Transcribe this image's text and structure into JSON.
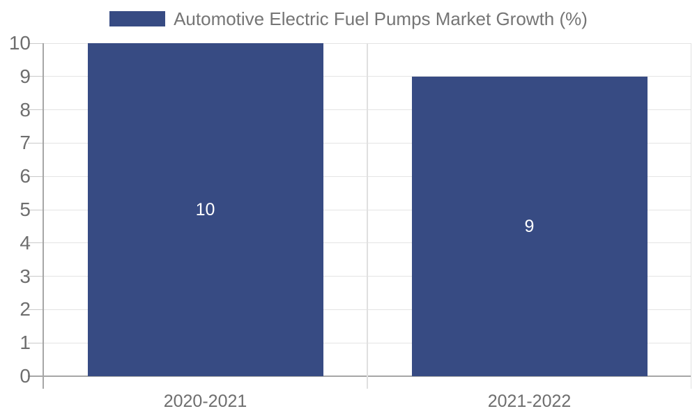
{
  "chart_data": {
    "type": "bar",
    "title": "Automotive Electric Fuel Pumps Market Growth (%)",
    "categories": [
      "2020-2021",
      "2021-2022"
    ],
    "values": [
      10,
      9
    ],
    "data_labels": [
      "10",
      "9"
    ],
    "xlabel": "",
    "ylabel": "",
    "ylim": [
      0,
      10
    ],
    "yticks": [
      0,
      1,
      2,
      3,
      4,
      5,
      6,
      7,
      8,
      9,
      10
    ],
    "grid": true,
    "legend_position": "top-center",
    "colors": {
      "bar": "#374B83",
      "bar_label": "#FFFFFF",
      "axis_text": "#6E6E6E",
      "legend_text": "#757575",
      "gridline": "#E4E4E4",
      "axis_line": "#A6A6A6",
      "boundary_line": "#E0E0E0",
      "tick": "#C9C9C9",
      "background": "#FFFFFF"
    }
  }
}
